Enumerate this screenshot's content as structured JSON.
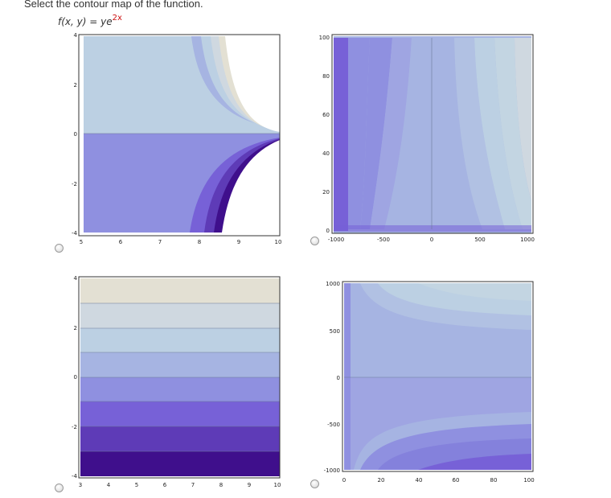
{
  "question": "Select the contour map of the function.",
  "function": {
    "prefix": "f(x, y) = ye",
    "exponent": "2x"
  },
  "options": [
    {
      "id": "A",
      "x_ticks": [
        "5",
        "6",
        "7",
        "8",
        "9",
        "10"
      ],
      "y_ticks": [
        "4",
        "2",
        "0",
        "-2",
        "-4"
      ]
    },
    {
      "id": "B",
      "x_ticks": [
        "-1000",
        "-500",
        "0",
        "500",
        "1000"
      ],
      "y_ticks": [
        "100",
        "80",
        "60",
        "40",
        "20",
        "0"
      ]
    },
    {
      "id": "C",
      "x_ticks": [
        "3",
        "4",
        "5",
        "6",
        "7",
        "8",
        "9",
        "10"
      ],
      "y_ticks": [
        "4",
        "2",
        "0",
        "-2",
        "-4"
      ]
    },
    {
      "id": "D",
      "x_ticks": [
        "0",
        "20",
        "40",
        "60",
        "80",
        "100"
      ],
      "y_ticks": [
        "1000",
        "500",
        "0",
        "-500",
        "-1000"
      ]
    }
  ],
  "colors": {
    "level_1": "#e3e0d3",
    "level_2": "#cfd8e0",
    "level_3": "#bcd0e3",
    "level_4": "#a6b4e2",
    "level_5": "#8f90e0",
    "level_6": "#7761d7",
    "level_7": "#5e3bb7",
    "level_8": "#3f0f8c",
    "contour_line": "#6b7a99"
  }
}
